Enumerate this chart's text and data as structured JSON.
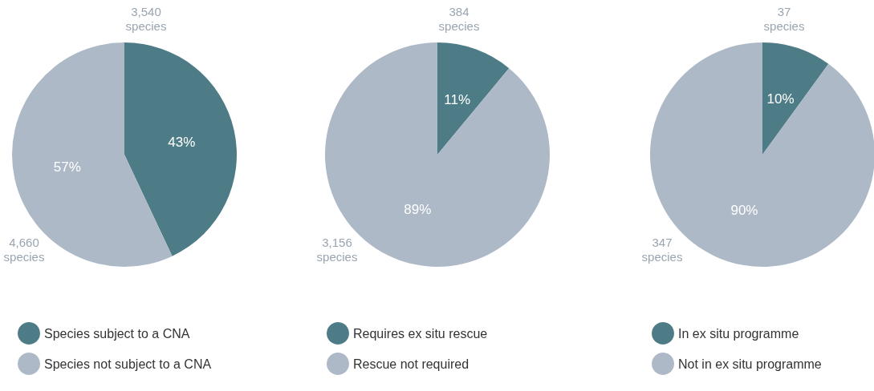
{
  "chart_data": [
    {
      "type": "pie",
      "categories": [
        "Species subject to a CNA",
        "Species not subject to a CNA"
      ],
      "values": [
        43,
        57
      ],
      "colors": [
        "#4e7c86",
        "#aeb9c7"
      ],
      "value_labels": [
        "43%",
        "57%"
      ],
      "annotations": [
        {
          "text": "3,540 species",
          "x": "Species subject to a CNA"
        },
        {
          "text": "4,660 species",
          "x": "Species not subject to a CNA"
        }
      ],
      "legend": "bottom"
    },
    {
      "type": "pie",
      "categories": [
        "Requires ex situ rescue",
        "Rescue not required"
      ],
      "values": [
        11,
        89
      ],
      "colors": [
        "#4e7c86",
        "#aeb9c7"
      ],
      "value_labels": [
        "11%",
        "89%"
      ],
      "annotations": [
        {
          "text": "384 species",
          "x": "Requires ex situ rescue"
        },
        {
          "text": "3,156 species",
          "x": "Rescue not required"
        }
      ],
      "legend": "bottom"
    },
    {
      "type": "pie",
      "categories": [
        "In ex situ programme",
        "Not in ex situ programme"
      ],
      "values": [
        10,
        90
      ],
      "colors": [
        "#4e7c86",
        "#aeb9c7"
      ],
      "value_labels": [
        "10%",
        "90%"
      ],
      "annotations": [
        {
          "text": "37 species",
          "x": "In ex situ programme"
        },
        {
          "text": "347 species",
          "x": "Not in ex situ programme"
        }
      ],
      "legend": "bottom"
    }
  ]
}
